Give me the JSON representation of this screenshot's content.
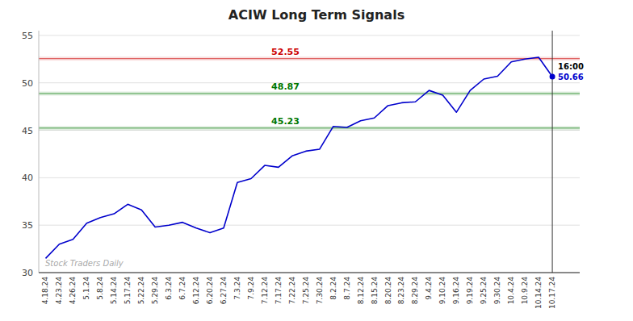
{
  "chart_data": {
    "type": "line",
    "title": "ACIW Long Term Signals",
    "categories": [
      "4.18.24",
      "4.23.24",
      "4.26.24",
      "5.1.24",
      "5.8.24",
      "5.14.24",
      "5.17.24",
      "5.22.24",
      "5.29.24",
      "6.3.24",
      "6.7.24",
      "6.12.24",
      "6.20.24",
      "6.27.24",
      "7.3.24",
      "7.9.24",
      "7.12.24",
      "7.17.24",
      "7.22.24",
      "7.25.24",
      "7.30.24",
      "8.2.24",
      "8.7.24",
      "8.12.24",
      "8.15.24",
      "8.20.24",
      "8.23.24",
      "8.29.24",
      "9.4.24",
      "9.10.24",
      "9.16.24",
      "9.19.24",
      "9.25.24",
      "9.30.24",
      "10.4.24",
      "10.9.24",
      "10.14.24",
      "10.17.24"
    ],
    "values": [
      31.5,
      33.0,
      33.5,
      35.2,
      35.8,
      36.2,
      37.2,
      36.6,
      34.8,
      35.0,
      35.3,
      34.7,
      34.2,
      34.7,
      39.5,
      39.9,
      41.3,
      41.1,
      42.3,
      42.8,
      43.0,
      45.4,
      45.3,
      46.0,
      46.3,
      47.6,
      47.9,
      48.0,
      49.2,
      48.7,
      46.9,
      49.2,
      50.4,
      50.7,
      52.2,
      52.5,
      52.7,
      50.66
    ],
    "color": "#0000cc",
    "hlines": [
      {
        "value": 52.55,
        "color": "#cc0000"
      },
      {
        "value": 48.87,
        "color": "#007700"
      },
      {
        "value": 45.23,
        "color": "#007700"
      }
    ],
    "annotations": [
      {
        "text": "16:00",
        "color": "#000000"
      },
      {
        "text": "50.66",
        "color": "#0000cc"
      }
    ],
    "watermark": "Stock Traders Daily",
    "ylim": [
      30,
      55.5
    ],
    "yticks": [
      30,
      35,
      40,
      45,
      50,
      55
    ],
    "grid": true
  }
}
